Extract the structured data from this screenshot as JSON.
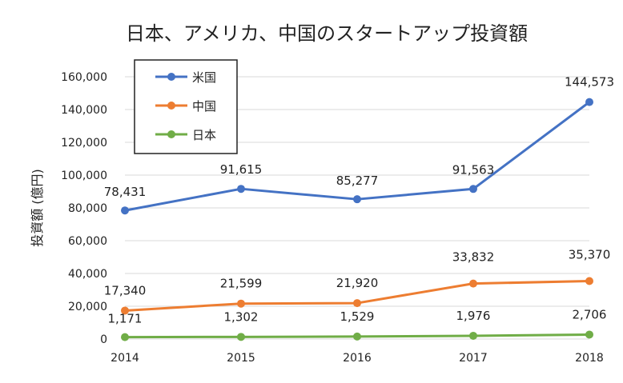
{
  "chart_data": {
    "type": "line",
    "title": "日本、アメリカ、中国のスタートアップ投資額",
    "xlabel": "",
    "ylabel": "投資額 (億円)",
    "categories": [
      "2014",
      "2015",
      "2016",
      "2017",
      "2018"
    ],
    "ylim": [
      0,
      160000
    ],
    "yticks": [
      0,
      20000,
      40000,
      60000,
      80000,
      100000,
      120000,
      140000,
      160000
    ],
    "ytick_labels": [
      "0",
      "20,000",
      "40,000",
      "60,000",
      "80,000",
      "100,000",
      "120,000",
      "140,000",
      "160,000"
    ],
    "grid": true,
    "legend_position": "top-left",
    "series": [
      {
        "name": "米国",
        "color": "#4472C4",
        "values": [
          78431,
          91615,
          85277,
          91563,
          144573
        ],
        "labels": [
          "78,431",
          "91,615",
          "85,277",
          "91,563",
          "144,573"
        ]
      },
      {
        "name": "中国",
        "color": "#ED7D31",
        "values": [
          17340,
          21599,
          21920,
          33832,
          35370
        ],
        "labels": [
          "17,340",
          "21,599",
          "21,920",
          "33,832",
          "35,370"
        ]
      },
      {
        "name": "日本",
        "color": "#70AD47",
        "values": [
          1171,
          1302,
          1529,
          1976,
          2706
        ],
        "labels": [
          "1,171",
          "1,302",
          "1,529",
          "1,976",
          "2,706"
        ]
      }
    ]
  }
}
